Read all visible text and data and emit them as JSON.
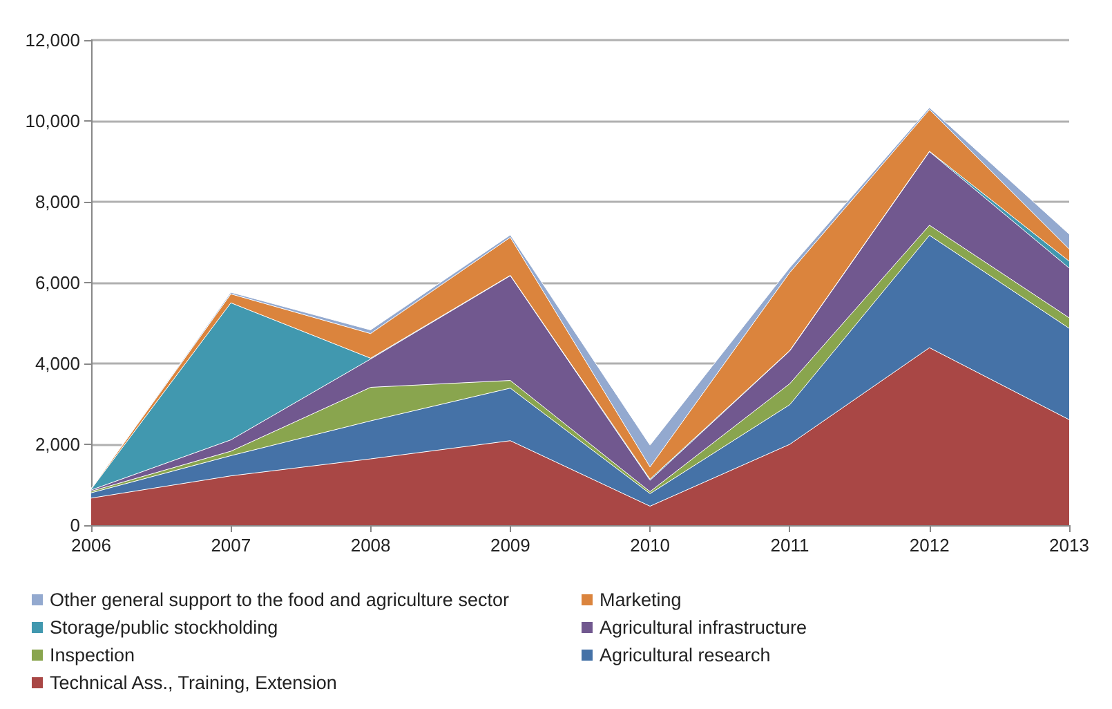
{
  "chart_data": {
    "type": "area",
    "stacked": true,
    "categories": [
      "2006",
      "2007",
      "2008",
      "2009",
      "2010",
      "2011",
      "2012",
      "2013"
    ],
    "ylim": [
      0,
      12000
    ],
    "yticks": [
      0,
      {
        "value": 2000,
        "label": "2,000"
      },
      {
        "value": 4000,
        "label": "4,000"
      },
      {
        "value": 6000,
        "label": "6,000"
      },
      {
        "value": 8000,
        "label": "8,000"
      },
      {
        "value": 10000,
        "label": "10,000"
      },
      {
        "value": 12000,
        "label": "12,000"
      }
    ],
    "grid": "y",
    "legend": "bottom",
    "series": [
      {
        "name": "Technical Ass., Training, Extension",
        "color": "#a94745",
        "values": [
          670,
          1220,
          1640,
          2090,
          470,
          2000,
          4390,
          2610
        ]
      },
      {
        "name": "Agricultural research",
        "color": "#4572a7",
        "values": [
          130,
          500,
          940,
          1300,
          310,
          980,
          2780,
          2260
        ]
      },
      {
        "name": "Inspection",
        "color": "#89a54e",
        "values": [
          40,
          110,
          830,
          190,
          50,
          520,
          250,
          260
        ]
      },
      {
        "name": "Agricultural infrastructure",
        "color": "#71588f",
        "values": [
          30,
          280,
          700,
          2590,
          280,
          810,
          1820,
          1230
        ]
      },
      {
        "name": "Storage/public stockholding",
        "color": "#4198af",
        "values": [
          20,
          3390,
          20,
          10,
          30,
          10,
          10,
          170
        ]
      },
      {
        "name": "Marketing",
        "color": "#db843d",
        "values": [
          10,
          220,
          610,
          940,
          300,
          1930,
          1030,
          300
        ]
      },
      {
        "name": "Other general support to the food and agriculture sector",
        "color": "#93a9cf",
        "values": [
          10,
          40,
          90,
          60,
          540,
          120,
          50,
          370
        ]
      }
    ]
  }
}
